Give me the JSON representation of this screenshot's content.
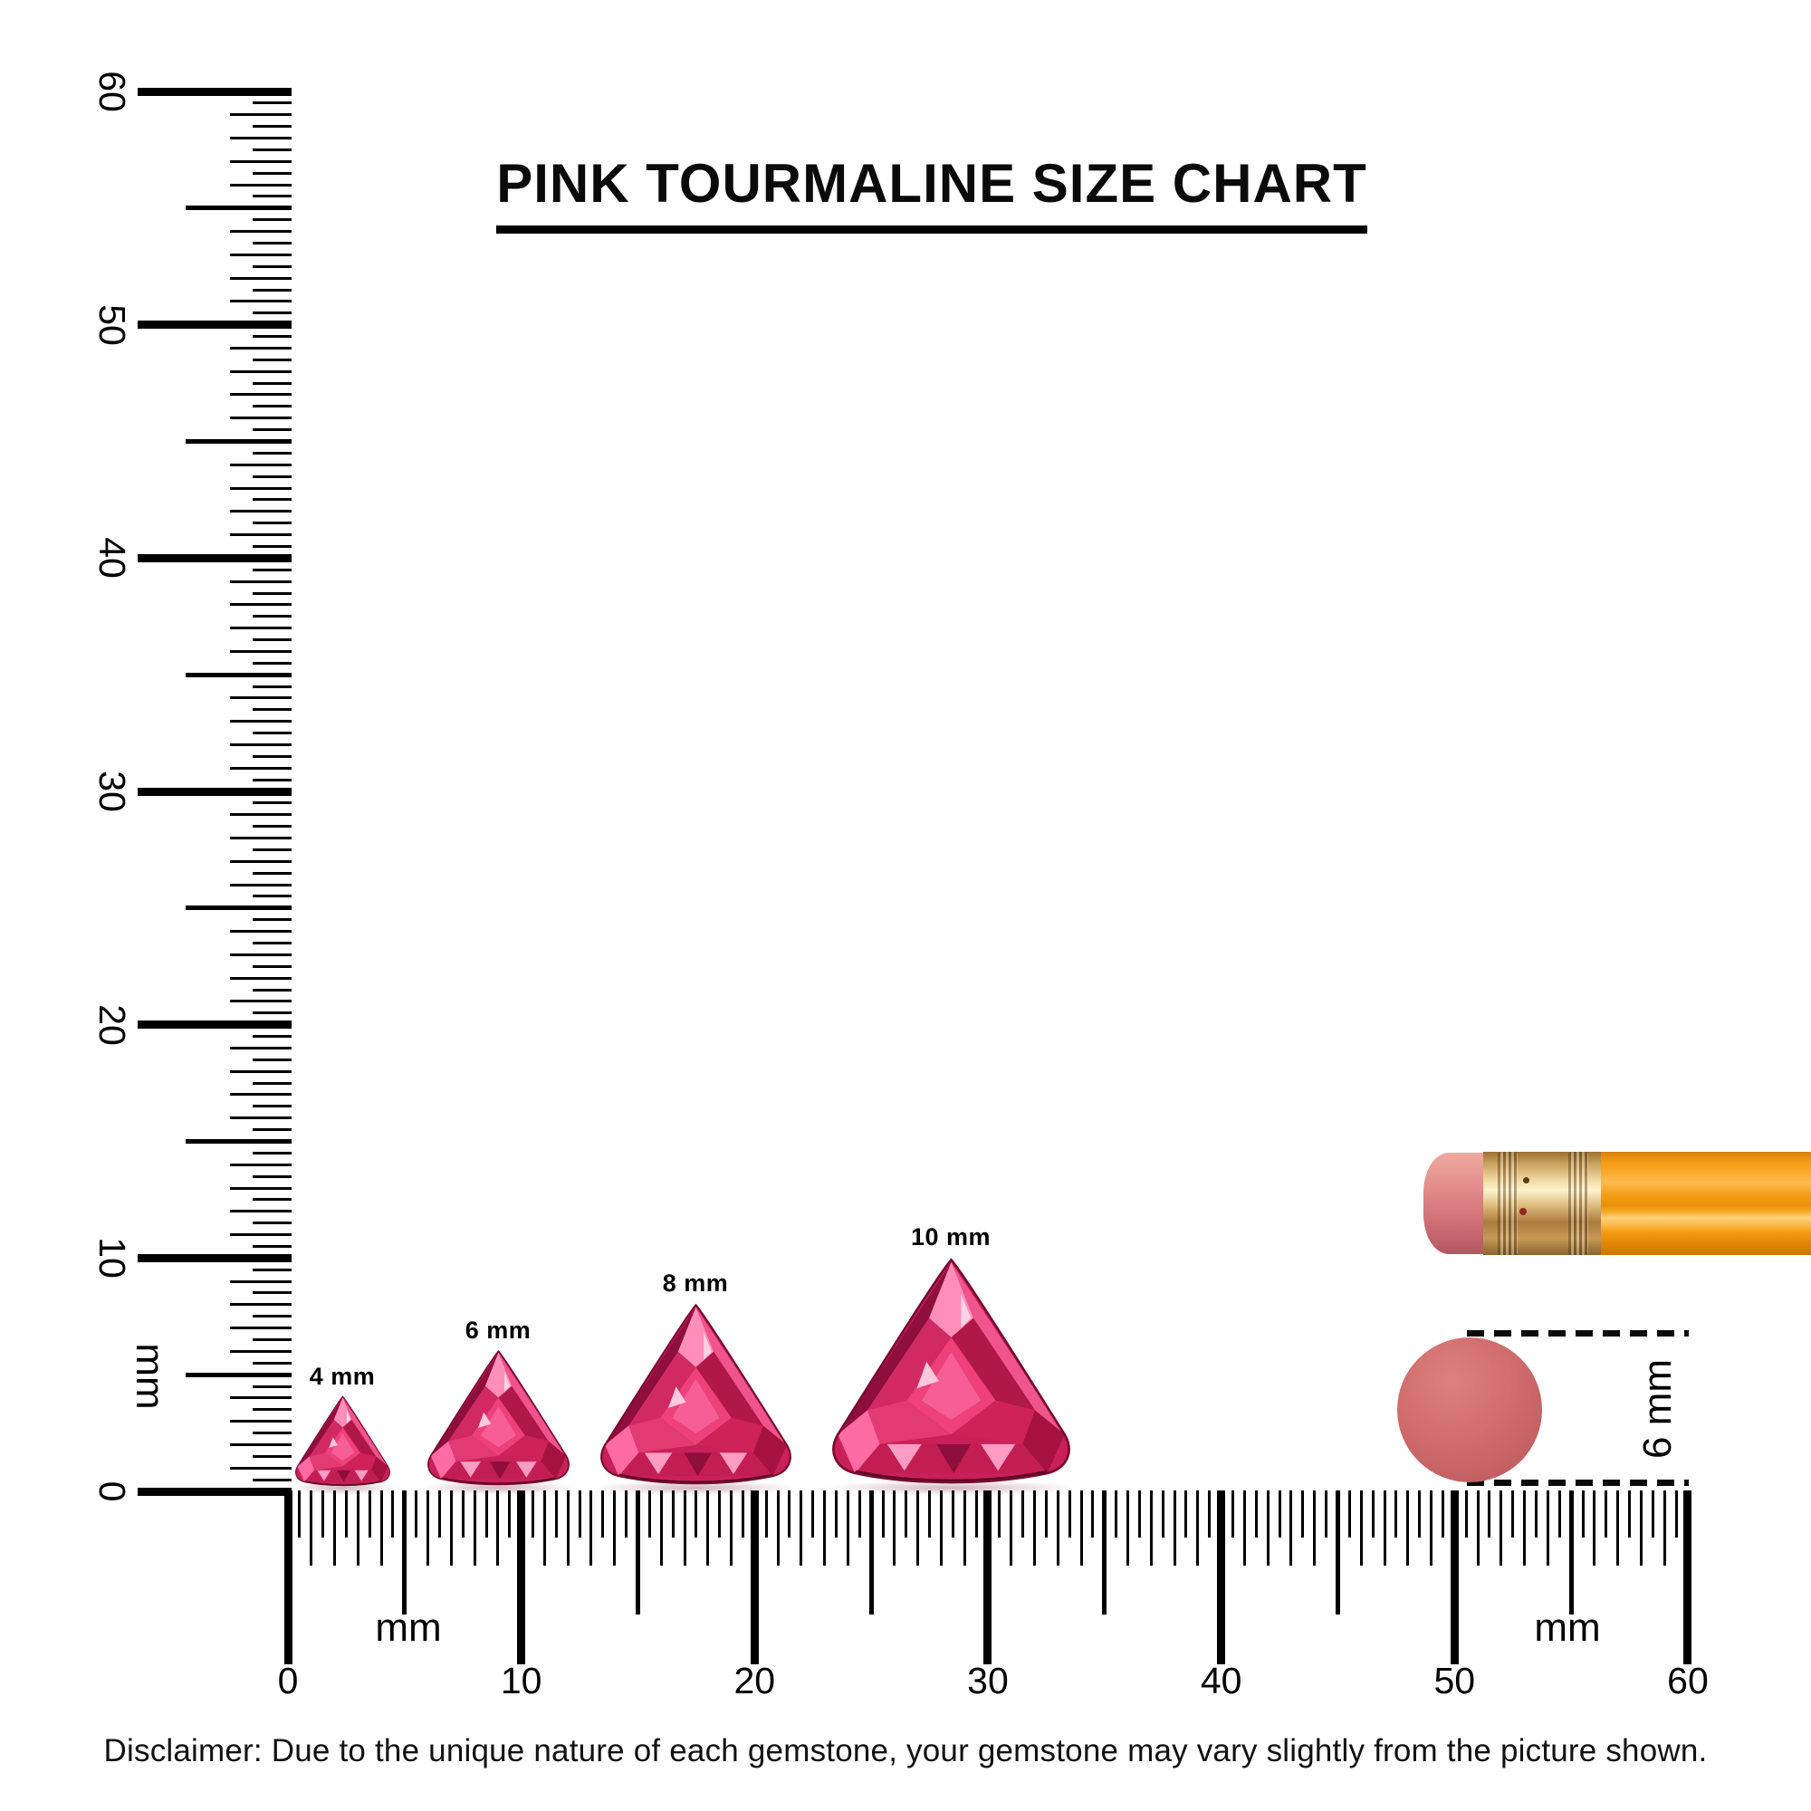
{
  "title": "PINK TOURMALINE SIZE CHART",
  "vertical_ruler": {
    "numbers": [
      "0",
      "10",
      "20",
      "30",
      "40",
      "50",
      "60"
    ],
    "unit_label": "mm"
  },
  "horizontal_ruler": {
    "numbers": [
      "0",
      "10",
      "20",
      "30",
      "40",
      "50",
      "60"
    ],
    "unit_label_left": "mm",
    "unit_label_right": "mm"
  },
  "gems": [
    {
      "label": "4 mm",
      "size_mm": 4
    },
    {
      "label": "6 mm",
      "size_mm": 6
    },
    {
      "label": "8 mm",
      "size_mm": 8
    },
    {
      "label": "10 mm",
      "size_mm": 10
    }
  ],
  "reference_dot": {
    "label": "6 mm",
    "diameter_mm": 6,
    "color": "#d06b6b"
  },
  "pencil": {
    "body_color": "#f9a01b",
    "ferrule_color": "#caa35f",
    "eraser_color": "#dd8184"
  },
  "disclaimer": "Disclaimer: Due to the unique nature of each gemstone, your gemstone may vary slightly from the picture shown.",
  "colors": {
    "ink": "#000000",
    "gem_pink": "#e8457c",
    "gem_dark": "#8e0e3c",
    "gem_light": "#ff8fb9"
  }
}
